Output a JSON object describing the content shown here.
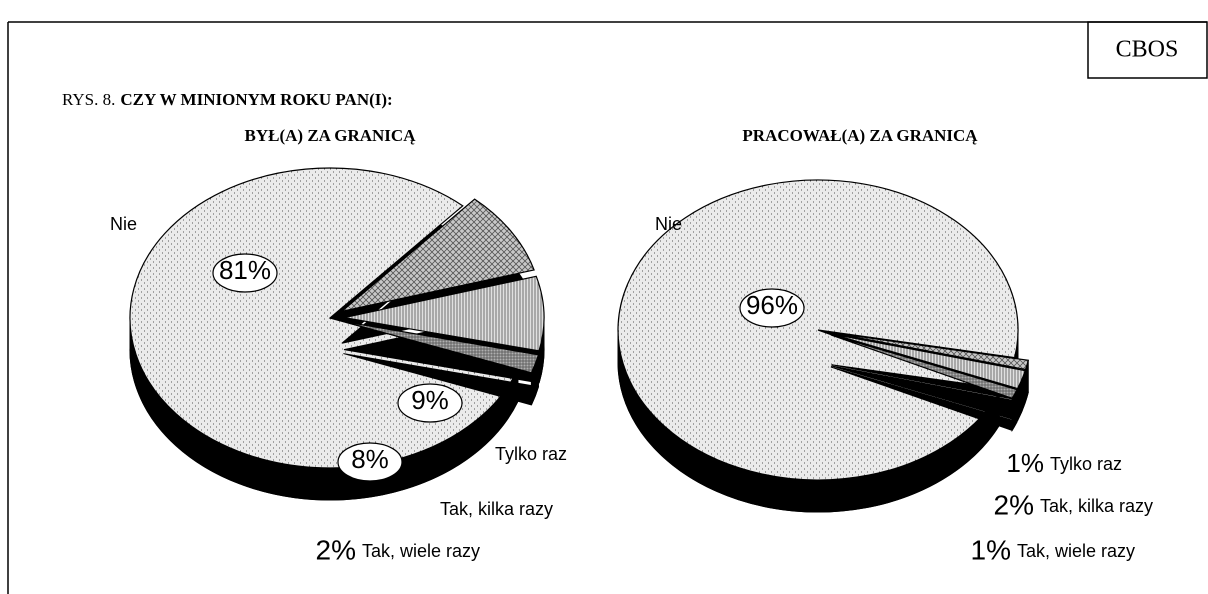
{
  "header": {
    "source": "CBOS",
    "figure": "RYS. 8.",
    "question": "CZY W MINIONYM ROKU PAN(I):"
  },
  "chart_data": [
    {
      "type": "pie",
      "title": "BYŁ(A) ZA GRANICĄ",
      "categories": [
        "Nie",
        "Tylko raz",
        "Tak, kilka razy",
        "Tak, wiele razy"
      ],
      "values": [
        81,
        9,
        8,
        2
      ],
      "value_labels": [
        "81%",
        "9%",
        "8%",
        "2%"
      ],
      "colors": [
        "#ebebeb",
        "#c8c8c8",
        "#e0e0e0",
        "#b0b0b0"
      ]
    },
    {
      "type": "pie",
      "title": "PRACOWAŁ(A) ZA GRANICĄ",
      "categories": [
        "Nie",
        "Tylko raz",
        "Tak, kilka razy",
        "Tak, wiele razy"
      ],
      "values": [
        96,
        1,
        2,
        1
      ],
      "value_labels": [
        "96%",
        "1%",
        "2%",
        "1%"
      ],
      "colors": [
        "#ebebeb",
        "#c8c8c8",
        "#e0e0e0",
        "#b0b0b0"
      ]
    }
  ]
}
